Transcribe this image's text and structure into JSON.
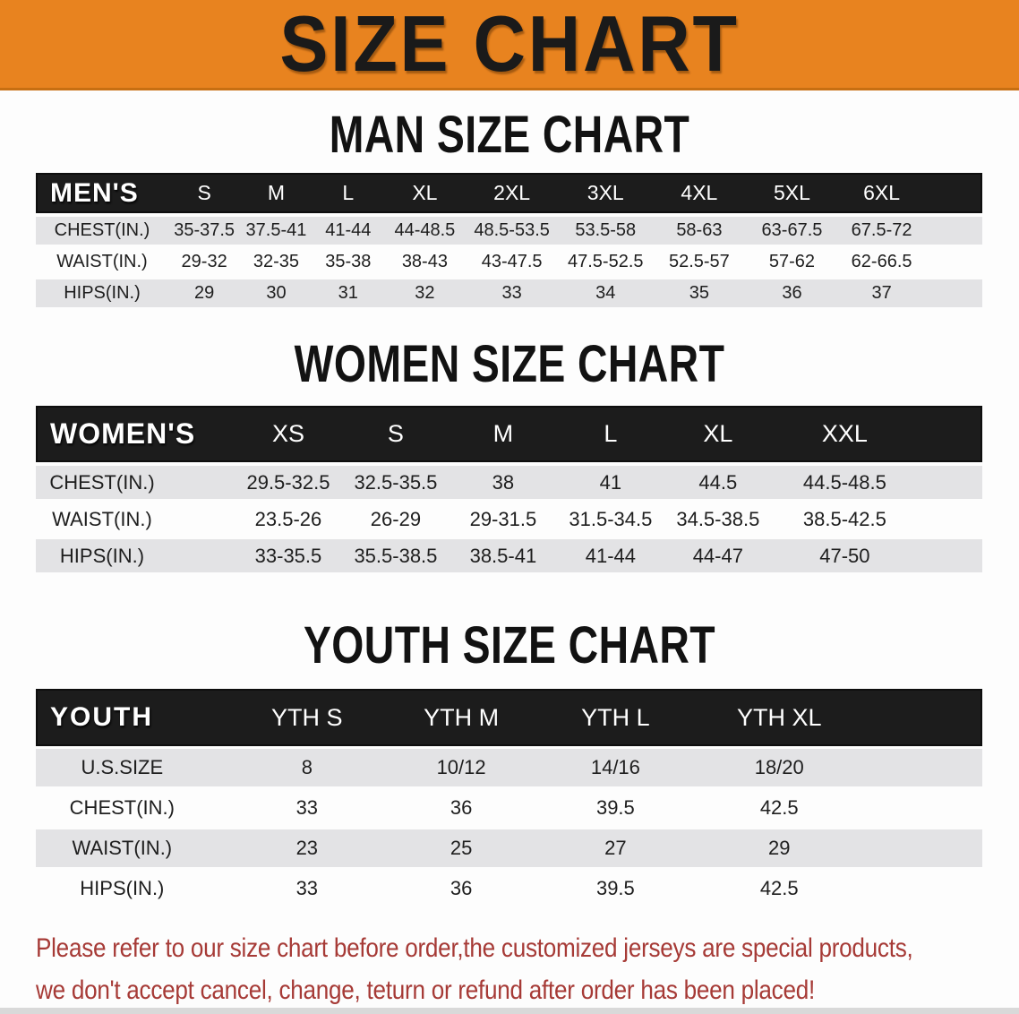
{
  "banner": {
    "title": "SIZE CHART"
  },
  "sections": [
    {
      "title": "MAN SIZE CHART",
      "table": {
        "header": [
          "MEN'S",
          "S",
          "M",
          "L",
          "XL",
          "2XL",
          "3XL",
          "4XL",
          "5XL",
          "6XL"
        ],
        "rows": [
          {
            "label": "CHEST(IN.)",
            "values": [
              "35-37.5",
              "37.5-41",
              "41-44",
              "44-48.5",
              "48.5-53.5",
              "53.5-58",
              "58-63",
              "63-67.5",
              "67.5-72"
            ]
          },
          {
            "label": "WAIST(IN.)",
            "values": [
              "29-32",
              "32-35",
              "35-38",
              "38-43",
              "43-47.5",
              "47.5-52.5",
              "52.5-57",
              "57-62",
              "62-66.5"
            ]
          },
          {
            "label": "HIPS(IN.)",
            "values": [
              "29",
              "30",
              "31",
              "32",
              "33",
              "34",
              "35",
              "36",
              "37"
            ]
          }
        ]
      }
    },
    {
      "title": "WOMEN SIZE CHART",
      "table": {
        "header": [
          "WOMEN'S",
          "XS",
          "S",
          "M",
          "L",
          "XL",
          "XXL"
        ],
        "rows": [
          {
            "label": "CHEST(IN.)",
            "values": [
              "29.5-32.5",
              "32.5-35.5",
              "38",
              "41",
              "44.5",
              "44.5-48.5"
            ]
          },
          {
            "label": "WAIST(IN.)",
            "values": [
              "23.5-26",
              "26-29",
              "29-31.5",
              "31.5-34.5",
              "34.5-38.5",
              "38.5-42.5"
            ]
          },
          {
            "label": "HIPS(IN.)",
            "values": [
              "33-35.5",
              "35.5-38.5",
              "38.5-41",
              "41-44",
              "44-47",
              "47-50"
            ]
          }
        ]
      }
    },
    {
      "title": "YOUTH SIZE CHART",
      "table": {
        "header": [
          "YOUTH",
          "YTH S",
          "YTH M",
          "YTH L",
          "YTH XL"
        ],
        "rows": [
          {
            "label": "U.S.SIZE",
            "values": [
              "8",
              "10/12",
              "14/16",
              "18/20"
            ]
          },
          {
            "label": "CHEST(IN.)",
            "values": [
              "33",
              "36",
              "39.5",
              "42.5"
            ]
          },
          {
            "label": "WAIST(IN.)",
            "values": [
              "23",
              "25",
              "27",
              "29"
            ]
          },
          {
            "label": "HIPS(IN.)",
            "values": [
              "33",
              "36",
              "39.5",
              "42.5"
            ]
          }
        ]
      }
    }
  ],
  "notice": {
    "line1": "Please refer to our size chart before order,the customized jerseys are special products,",
    "line2": "we don't accept cancel, change, teturn or refund after order has been placed!"
  },
  "colors": {
    "banner_bg": "#E8831F",
    "banner_border": "#C76F12",
    "banner_text": "#1A1A1A",
    "header_bar_bg": "#1C1C1C",
    "header_bar_text": "#FFFFFF",
    "shaded_row_bg": "#E3E3E5",
    "body_text": "#1E1E1E",
    "notice_text": "#A63A36",
    "bottom_strip": "#D9D9D9",
    "page_bg": "#FDFDFD"
  }
}
